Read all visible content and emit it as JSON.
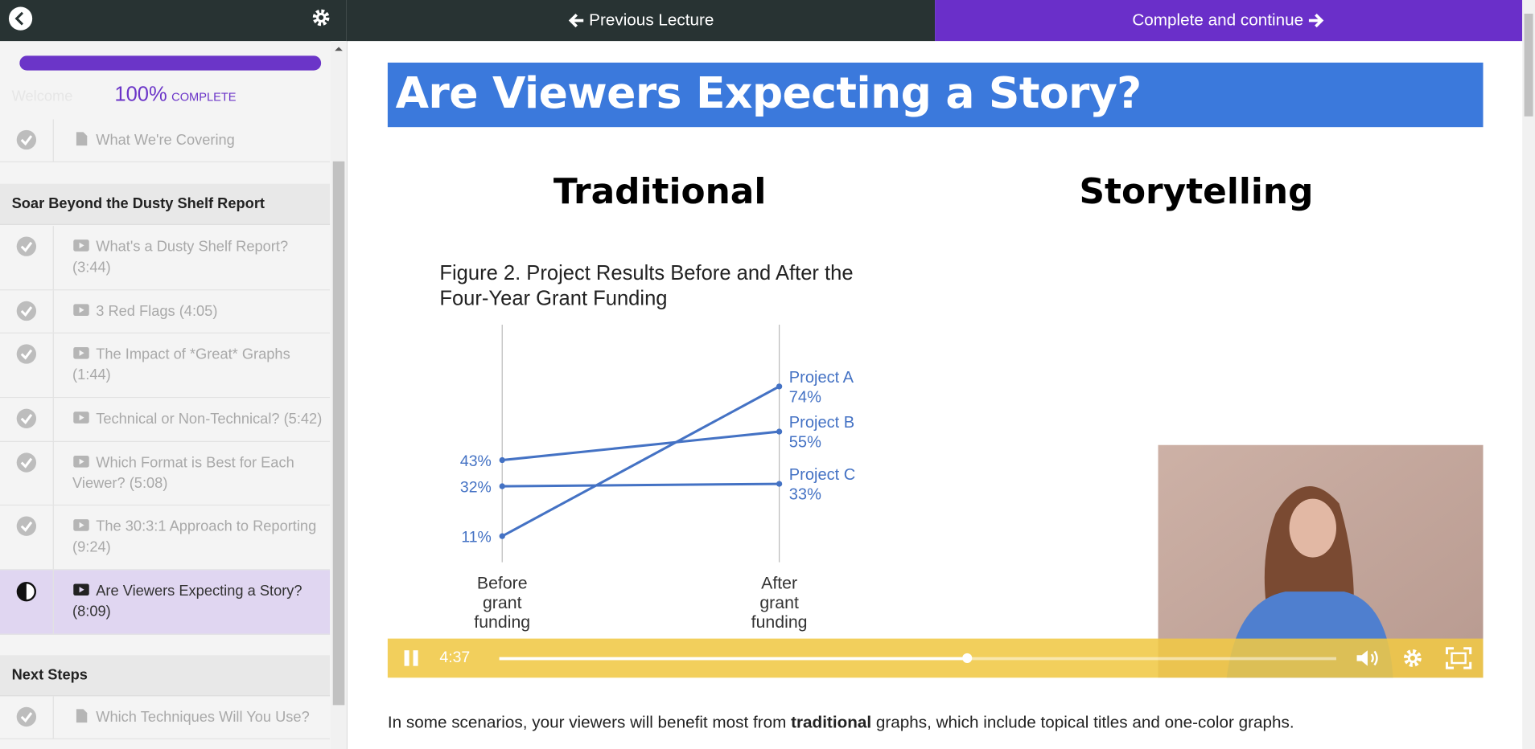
{
  "nav": {
    "previous": "Previous Lecture",
    "next": "Complete and continue"
  },
  "sidebar": {
    "faded": "Welcome",
    "progress": {
      "value": 100,
      "label": "100%",
      "caption": "COMPLETE"
    },
    "groups": [
      {
        "items": [
          {
            "title": "What We're Covering",
            "kind": "doc",
            "status": "done"
          }
        ]
      },
      {
        "title": "Soar Beyond the Dusty Shelf Report",
        "items": [
          {
            "title": "What's a Dusty Shelf Report? (3:44)",
            "kind": "video",
            "status": "done"
          },
          {
            "title": "3 Red Flags (4:05)",
            "kind": "video",
            "status": "done"
          },
          {
            "title": "The Impact of *Great* Graphs (1:44)",
            "kind": "video",
            "status": "done"
          },
          {
            "title": "Technical or Non-Technical? (5:42)",
            "kind": "video",
            "status": "done"
          },
          {
            "title": "Which Format is Best for Each Viewer? (5:08)",
            "kind": "video",
            "status": "done"
          },
          {
            "title": "The 30:3:1 Approach to Reporting (9:24)",
            "kind": "video",
            "status": "done"
          },
          {
            "title": "Are Viewers Expecting a Story? (8:09)",
            "kind": "video",
            "status": "current"
          }
        ]
      },
      {
        "title": "Next Steps",
        "items": [
          {
            "title": "Which Techniques Will You Use?",
            "kind": "doc",
            "status": "done"
          }
        ]
      }
    ]
  },
  "slide": {
    "title": "Are Viewers Expecting a Story?",
    "left_heading": "Traditional",
    "right_heading": "Storytelling"
  },
  "video": {
    "time": "4:37"
  },
  "chart_data": {
    "type": "slope",
    "title": "Figure 2. Project Results Before and After the Four-Year Grant Funding",
    "categories": [
      "Before grant funding",
      "After grant funding"
    ],
    "ylim": [
      0,
      100
    ],
    "color": "#4472c4",
    "series": [
      {
        "name": "Project A",
        "color": "#4472c4",
        "values": [
          11,
          74
        ],
        "value_labels": [
          "11%",
          "74%"
        ]
      },
      {
        "name": "Project B",
        "color": "#4472c4",
        "values": [
          43,
          55
        ],
        "value_labels": [
          "43%",
          "55%"
        ]
      },
      {
        "name": "Project C",
        "color": "#4472c4",
        "values": [
          32,
          33
        ],
        "value_labels": [
          "32%",
          "33%"
        ]
      }
    ]
  },
  "caption": {
    "before": "In some scenarios, your viewers will benefit most from ",
    "bold": "traditional",
    "after": " graphs, which include topical titles and one-color graphs."
  }
}
